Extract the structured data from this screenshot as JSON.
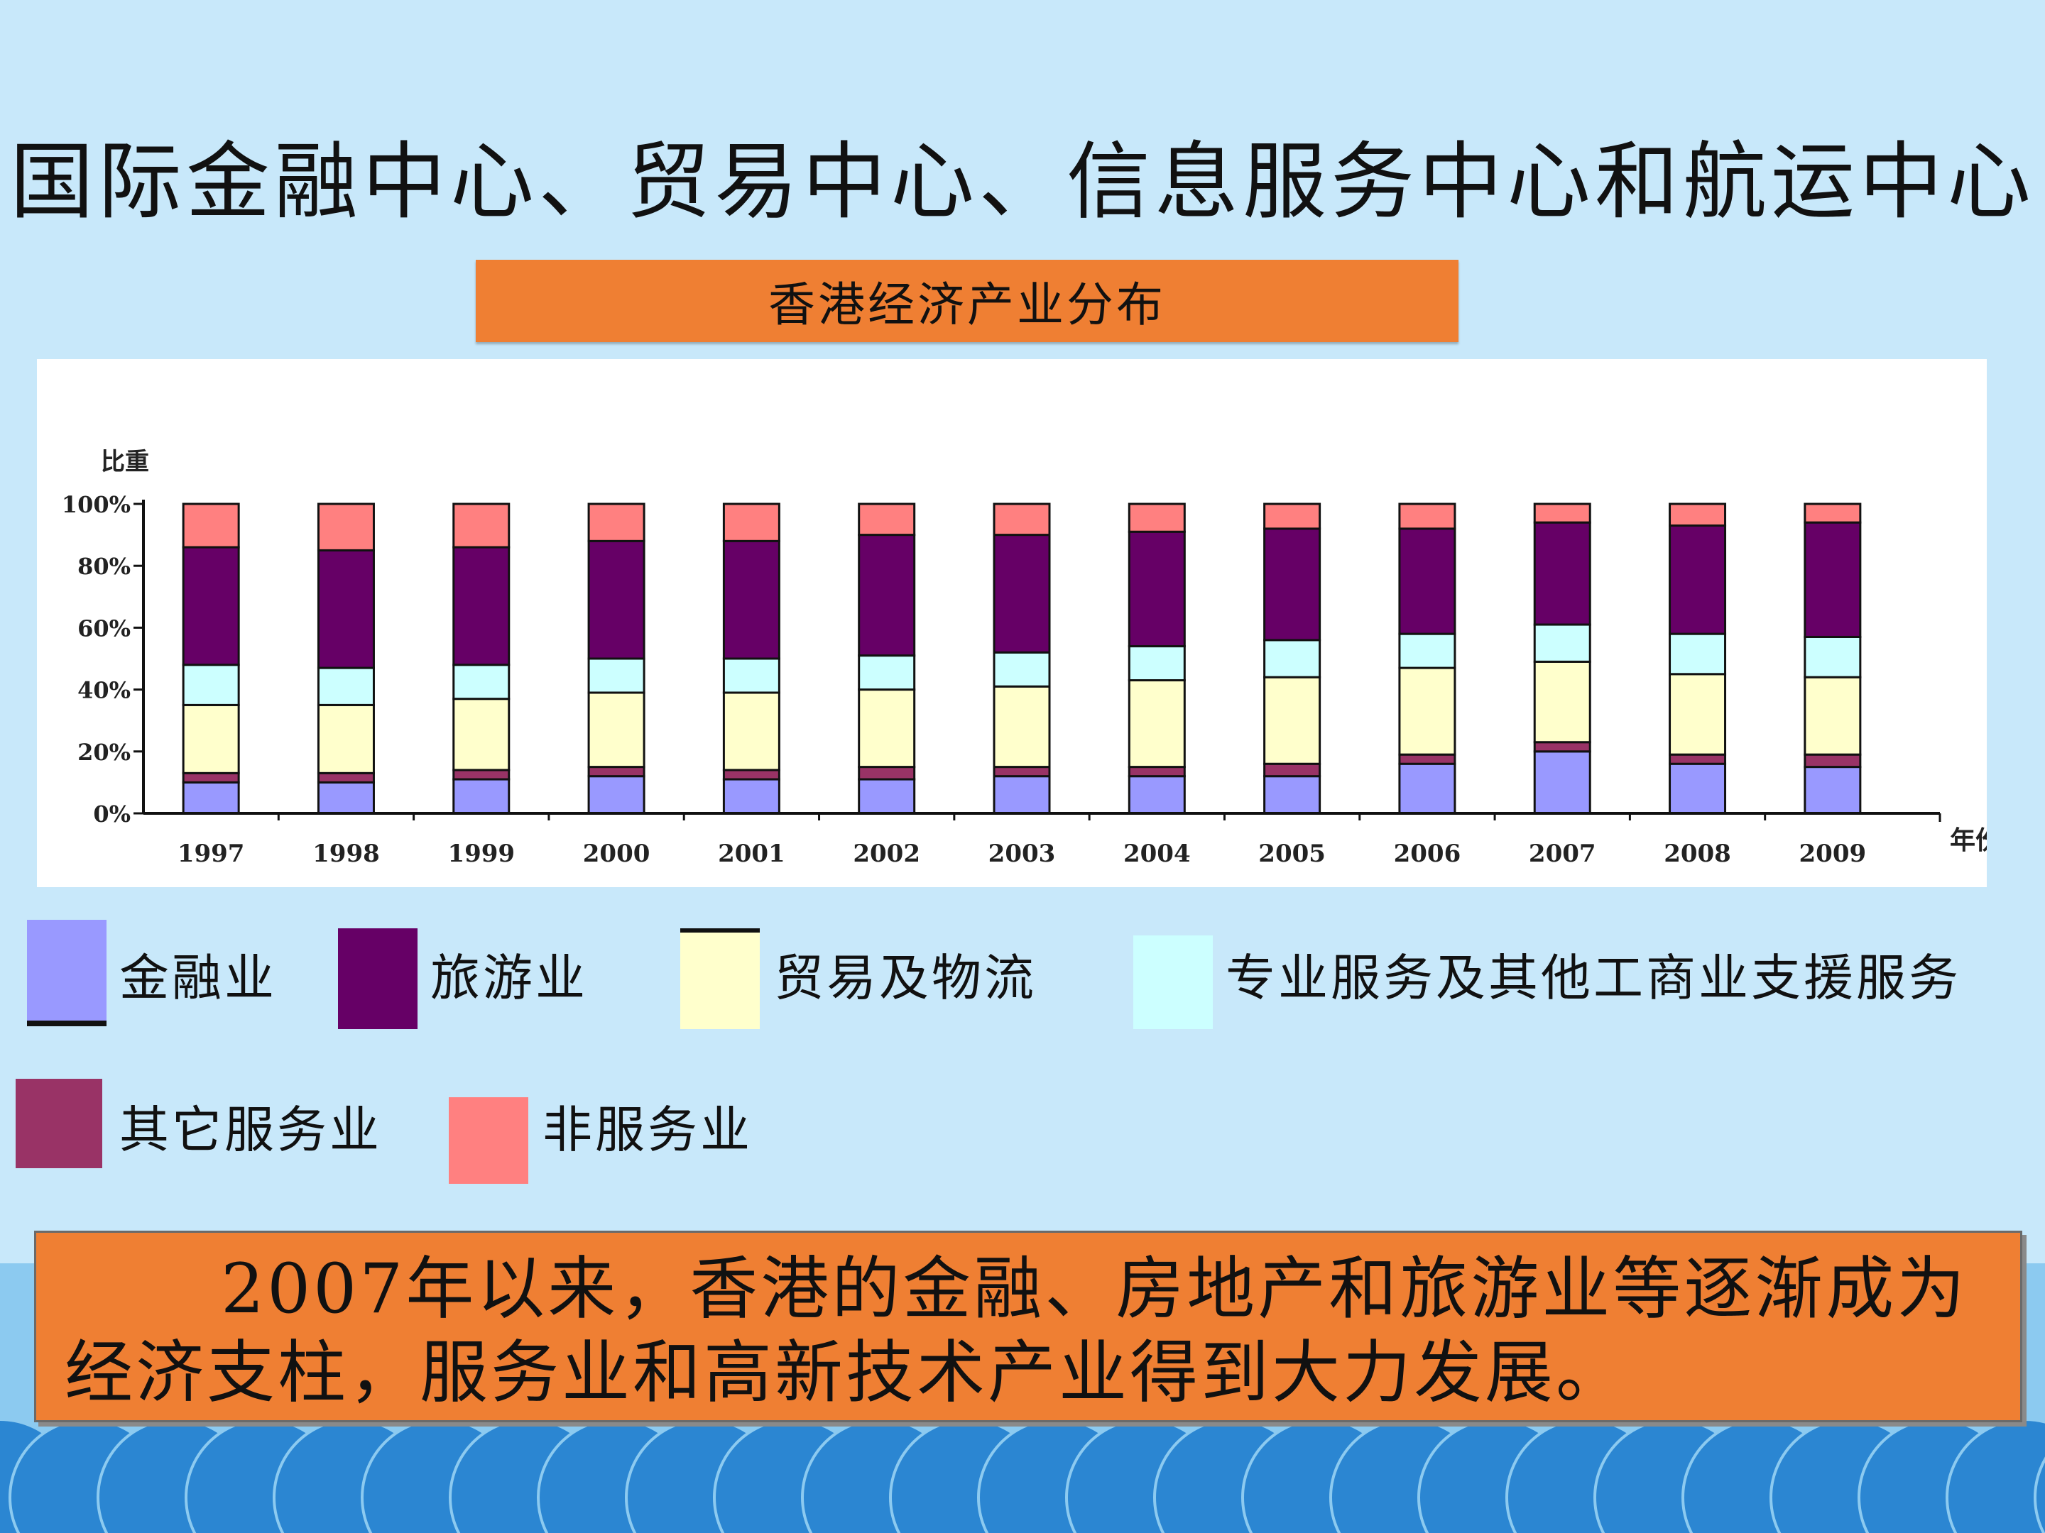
{
  "slide": {
    "title": "国际金融中心、贸易中心、信息服务中心和航运中心",
    "chart_heading": "香港经济产业分布",
    "note": "2007年以来，香港的金融、房地产和旅游业等逐渐成为经济支柱，服务业和高新技术产业得到大力发展。"
  },
  "legend": [
    {
      "label": "金融业",
      "color": "#9999ff"
    },
    {
      "label": "旅游业",
      "color": "#660066"
    },
    {
      "label": "贸易及物流",
      "color": "#ffffcc"
    },
    {
      "label": "专业服务及其他工商业支援服务",
      "color": "#ccffff"
    },
    {
      "label": "其它服务业",
      "color": "#993366"
    },
    {
      "label": "非服务业",
      "color": "#ff8080"
    }
  ],
  "chart_data": {
    "type": "bar",
    "stacked": true,
    "title": "香港经济产业分布",
    "ylabel": "比重",
    "xlabel": "年份",
    "ylim": [
      0,
      100
    ],
    "yticks": [
      "0%",
      "20%",
      "40%",
      "60%",
      "80%",
      "100%"
    ],
    "categories": [
      "1997",
      "1998",
      "1999",
      "2000",
      "2001",
      "2002",
      "2003",
      "2004",
      "2005",
      "2006",
      "2007",
      "2008",
      "2009"
    ],
    "series": [
      {
        "name": "金融业",
        "color": "#9999ff",
        "values": [
          10,
          10,
          11,
          12,
          11,
          11,
          12,
          12,
          12,
          16,
          20,
          16,
          15
        ]
      },
      {
        "name": "其它服务业",
        "color": "#993366",
        "values": [
          3,
          3,
          3,
          3,
          3,
          4,
          3,
          3,
          4,
          3,
          3,
          3,
          4
        ]
      },
      {
        "name": "贸易及物流",
        "color": "#ffffcc",
        "values": [
          22,
          22,
          23,
          24,
          25,
          25,
          26,
          28,
          28,
          28,
          26,
          26,
          25
        ]
      },
      {
        "name": "专业服务及其他工商业支援服务",
        "color": "#ccffff",
        "values": [
          13,
          12,
          11,
          11,
          11,
          11,
          11,
          11,
          12,
          11,
          12,
          13,
          13
        ]
      },
      {
        "name": "旅游业",
        "color": "#660066",
        "values": [
          38,
          38,
          38,
          38,
          38,
          39,
          38,
          37,
          36,
          34,
          33,
          35,
          37
        ]
      },
      {
        "name": "非服务业",
        "color": "#ff8080",
        "values": [
          14,
          15,
          14,
          12,
          12,
          10,
          10,
          9,
          8,
          8,
          6,
          7,
          6
        ]
      }
    ]
  }
}
